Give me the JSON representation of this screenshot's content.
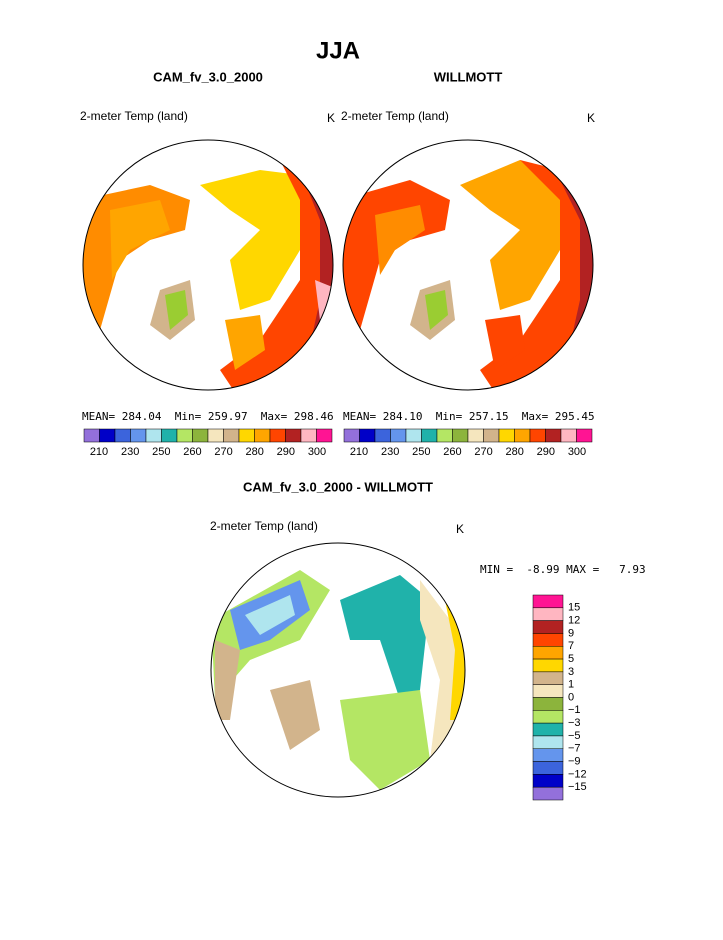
{
  "title": "JJA",
  "panels": [
    {
      "title": "CAM_fv_3.0_2000",
      "variable": "2-meter Temp (land)",
      "units": "K",
      "stats": "MEAN= 284.04  Min= 259.97  Max= 298.46"
    },
    {
      "title": "WILLMOTT",
      "variable": "2-meter Temp (land)",
      "units": "K",
      "stats": "MEAN= 284.10  Min= 257.15  Max= 295.45"
    }
  ],
  "colorbar": {
    "colors": [
      "#9370db",
      "#0000c8",
      "#3c64dc",
      "#6495ed",
      "#afe5ee",
      "#20b2aa",
      "#b4e664",
      "#8cb43c",
      "#f5e6be",
      "#d2b48c",
      "#ffd700",
      "#ffa500",
      "#ff4500",
      "#b22222",
      "#ffb6c1",
      "#ff1493"
    ],
    "labels": [
      "210",
      "230",
      "250",
      "260",
      "270",
      "280",
      "290",
      "300"
    ]
  },
  "difference": {
    "title": "CAM_fv_3.0_2000 - WILLMOTT",
    "variable": "2-meter Temp (land)",
    "units": "K",
    "stats": "MIN =  -8.99 MAX =   7.93",
    "colorbar": {
      "colors": [
        "#ff1493",
        "#ffb6c1",
        "#b22222",
        "#ff4500",
        "#ffa500",
        "#ffd700",
        "#d2b48c",
        "#f5e6be",
        "#8cb43c",
        "#b4e664",
        "#20b2aa",
        "#afe5ee",
        "#6495ed",
        "#3c64dc",
        "#0000c8",
        "#9370db"
      ],
      "labels": [
        "15",
        "12",
        "9",
        "7",
        "5",
        "3",
        "1",
        "0",
        "−1",
        "−3",
        "−5",
        "−7",
        "−9",
        "−12",
        "−15"
      ]
    }
  }
}
